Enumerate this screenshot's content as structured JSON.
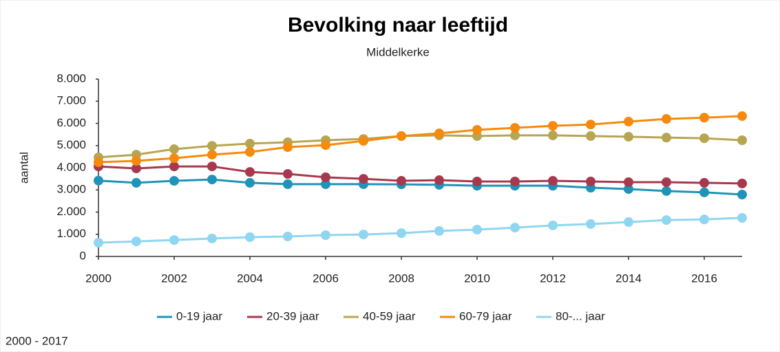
{
  "chart_data": {
    "type": "line",
    "title": "Bevolking naar leeftijd",
    "subtitle": "Middelkerke",
    "y_label": "aantal",
    "footnote": "2000 - 2017",
    "x": [
      2000,
      2001,
      2002,
      2003,
      2004,
      2005,
      2006,
      2007,
      2008,
      2009,
      2010,
      2011,
      2012,
      2013,
      2014,
      2015,
      2016,
      2017
    ],
    "xlim": [
      2000,
      2017
    ],
    "xticks": [
      2000,
      2002,
      2004,
      2006,
      2008,
      2010,
      2012,
      2014,
      2016
    ],
    "ylim": [
      0,
      8000
    ],
    "yticks": [
      0,
      {
        "value": 1000,
        "label": "1.000"
      },
      {
        "value": 2000,
        "label": "2.000"
      },
      {
        "value": 3000,
        "label": "3.000"
      },
      {
        "value": 4000,
        "label": "4.000"
      },
      {
        "value": 5000,
        "label": "5.000"
      },
      {
        "value": 6000,
        "label": "6.000"
      },
      {
        "value": 7000,
        "label": "7.000"
      },
      {
        "value": 8000,
        "label": "8.000"
      }
    ],
    "grid": false,
    "legend": "bottom",
    "series": [
      {
        "name": "0-19 jaar",
        "color": "#1f93b8",
        "values": [
          3420,
          3320,
          3410,
          3470,
          3320,
          3260,
          3260,
          3260,
          3250,
          3230,
          3190,
          3190,
          3190,
          3100,
          3040,
          2950,
          2890,
          2790
        ]
      },
      {
        "name": "20-39 jaar",
        "color": "#a8384d",
        "values": [
          4060,
          3970,
          4060,
          4060,
          3810,
          3720,
          3570,
          3500,
          3410,
          3440,
          3380,
          3380,
          3410,
          3380,
          3350,
          3350,
          3320,
          3290
        ]
      },
      {
        "name": "40-59 jaar",
        "color": "#b8a552",
        "values": [
          4470,
          4590,
          4840,
          4990,
          5090,
          5150,
          5240,
          5300,
          5430,
          5460,
          5430,
          5460,
          5460,
          5430,
          5400,
          5360,
          5330,
          5240
        ]
      },
      {
        "name": "60-79 jaar",
        "color": "#f58a0c",
        "values": [
          4250,
          4310,
          4430,
          4590,
          4710,
          4930,
          5020,
          5210,
          5430,
          5550,
          5710,
          5800,
          5890,
          5950,
          6080,
          6200,
          6260,
          6330
        ]
      },
      {
        "name": "80-... jaar",
        "color": "#8fd6f0",
        "values": [
          620,
          680,
          740,
          810,
          870,
          900,
          960,
          990,
          1050,
          1150,
          1210,
          1300,
          1400,
          1460,
          1550,
          1640,
          1670,
          1740
        ]
      }
    ]
  }
}
